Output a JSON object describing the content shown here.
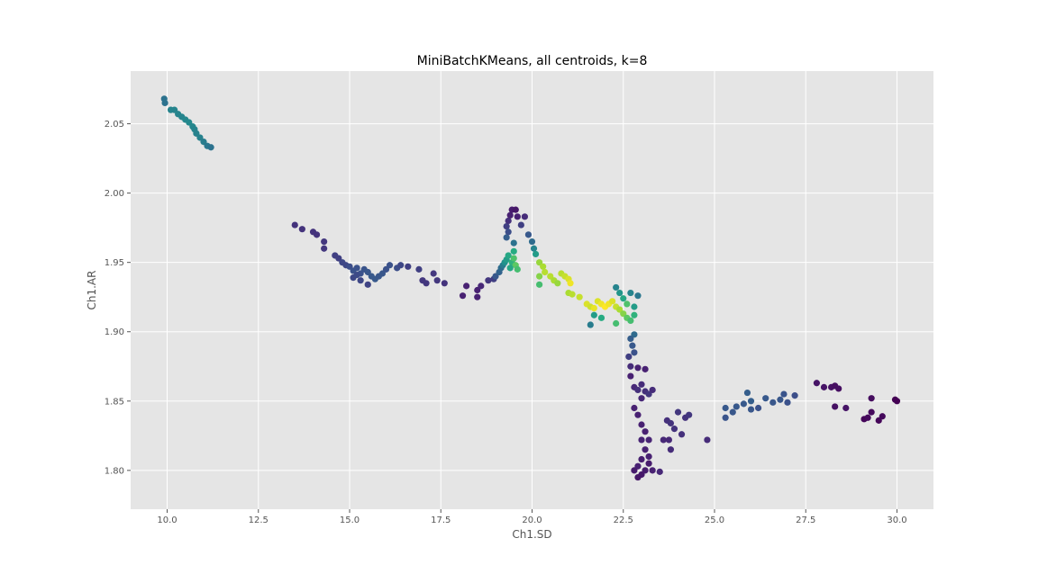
{
  "chart_data": {
    "type": "scatter",
    "title": "MiniBatchKMeans, all centroids, k=8",
    "xlabel": "Ch1.SD",
    "ylabel": "Ch1.AR",
    "xlim": [
      9,
      31
    ],
    "ylim": [
      1.772,
      2.088
    ],
    "xticks": [
      "10.0",
      "12.5",
      "15.0",
      "17.5",
      "20.0",
      "22.5",
      "25.0",
      "27.5",
      "30.0"
    ],
    "yticks": [
      "1.80",
      "1.85",
      "1.90",
      "1.95",
      "2.00",
      "2.05"
    ],
    "grid": true,
    "background": "#e5e5e5",
    "colormap": "viridis",
    "points": [
      [
        9.92,
        2.068,
        0.38
      ],
      [
        9.94,
        2.065,
        0.38
      ],
      [
        10.1,
        2.06,
        0.45
      ],
      [
        10.2,
        2.06,
        0.45
      ],
      [
        10.3,
        2.057,
        0.45
      ],
      [
        10.4,
        2.055,
        0.45
      ],
      [
        10.5,
        2.053,
        0.46
      ],
      [
        10.6,
        2.051,
        0.47
      ],
      [
        10.7,
        2.048,
        0.46
      ],
      [
        10.75,
        2.046,
        0.45
      ],
      [
        10.8,
        2.043,
        0.44
      ],
      [
        10.9,
        2.04,
        0.44
      ],
      [
        11.0,
        2.037,
        0.42
      ],
      [
        11.1,
        2.034,
        0.4
      ],
      [
        11.2,
        2.033,
        0.38
      ],
      [
        13.5,
        1.977,
        0.17
      ],
      [
        13.7,
        1.974,
        0.17
      ],
      [
        14.0,
        1.972,
        0.17
      ],
      [
        14.1,
        1.97,
        0.17
      ],
      [
        14.3,
        1.965,
        0.18
      ],
      [
        14.3,
        1.96,
        0.18
      ],
      [
        14.6,
        1.955,
        0.2
      ],
      [
        14.7,
        1.953,
        0.2
      ],
      [
        14.8,
        1.95,
        0.22
      ],
      [
        14.9,
        1.948,
        0.22
      ],
      [
        15.0,
        1.947,
        0.24
      ],
      [
        15.1,
        1.944,
        0.25
      ],
      [
        15.2,
        1.946,
        0.25
      ],
      [
        15.3,
        1.942,
        0.25
      ],
      [
        15.4,
        1.945,
        0.26
      ],
      [
        15.5,
        1.943,
        0.27
      ],
      [
        15.6,
        1.94,
        0.28
      ],
      [
        15.7,
        1.938,
        0.28
      ],
      [
        15.8,
        1.94,
        0.27
      ],
      [
        15.9,
        1.942,
        0.27
      ],
      [
        16.0,
        1.945,
        0.25
      ],
      [
        16.1,
        1.948,
        0.25
      ],
      [
        16.3,
        1.946,
        0.24
      ],
      [
        16.4,
        1.948,
        0.22
      ],
      [
        16.6,
        1.947,
        0.2
      ],
      [
        16.9,
        1.945,
        0.2
      ],
      [
        15.1,
        1.939,
        0.22
      ],
      [
        15.3,
        1.937,
        0.22
      ],
      [
        15.5,
        1.934,
        0.21
      ],
      [
        15.2,
        1.941,
        0.23
      ],
      [
        17.0,
        1.937,
        0.18
      ],
      [
        17.1,
        1.935,
        0.18
      ],
      [
        17.3,
        1.942,
        0.18
      ],
      [
        17.4,
        1.937,
        0.18
      ],
      [
        17.6,
        1.935,
        0.17
      ],
      [
        18.1,
        1.926,
        0.12
      ],
      [
        18.2,
        1.933,
        0.12
      ],
      [
        18.5,
        1.93,
        0.12
      ],
      [
        18.5,
        1.925,
        0.12
      ],
      [
        18.6,
        1.933,
        0.14
      ],
      [
        18.8,
        1.937,
        0.18
      ],
      [
        18.95,
        1.938,
        0.2
      ],
      [
        19.0,
        1.94,
        0.28
      ],
      [
        19.1,
        1.943,
        0.32
      ],
      [
        19.15,
        1.946,
        0.35
      ],
      [
        19.2,
        1.948,
        0.42
      ],
      [
        19.25,
        1.95,
        0.5
      ],
      [
        19.3,
        1.952,
        0.55
      ],
      [
        19.35,
        1.955,
        0.6
      ],
      [
        19.45,
        1.95,
        0.65
      ],
      [
        19.5,
        1.953,
        0.72
      ],
      [
        19.55,
        1.948,
        0.75
      ],
      [
        19.6,
        1.945,
        0.7
      ],
      [
        19.4,
        1.946,
        0.6
      ],
      [
        19.5,
        1.958,
        0.62
      ],
      [
        19.3,
        1.968,
        0.3
      ],
      [
        19.3,
        1.976,
        0.2
      ],
      [
        19.35,
        1.98,
        0.16
      ],
      [
        19.4,
        1.984,
        0.12
      ],
      [
        19.45,
        1.988,
        0.1
      ],
      [
        19.55,
        1.988,
        0.08
      ],
      [
        19.6,
        1.983,
        0.12
      ],
      [
        19.8,
        1.983,
        0.15
      ],
      [
        19.7,
        1.977,
        0.2
      ],
      [
        19.9,
        1.97,
        0.28
      ],
      [
        20.0,
        1.965,
        0.35
      ],
      [
        20.05,
        1.96,
        0.45
      ],
      [
        20.1,
        1.956,
        0.55
      ],
      [
        19.35,
        1.972,
        0.24
      ],
      [
        19.5,
        1.964,
        0.38
      ],
      [
        20.2,
        1.95,
        0.85
      ],
      [
        20.3,
        1.947,
        0.88
      ],
      [
        20.35,
        1.943,
        0.9
      ],
      [
        20.2,
        1.94,
        0.82
      ],
      [
        20.5,
        1.94,
        0.9
      ],
      [
        20.6,
        1.937,
        0.88
      ],
      [
        20.7,
        1.935,
        0.85
      ],
      [
        20.8,
        1.942,
        0.9
      ],
      [
        20.9,
        1.94,
        0.92
      ],
      [
        21.0,
        1.938,
        0.95
      ],
      [
        21.05,
        1.935,
        0.98
      ],
      [
        20.2,
        1.934,
        0.7
      ],
      [
        21.0,
        1.928,
        0.88
      ],
      [
        21.1,
        1.927,
        0.9
      ],
      [
        21.3,
        1.925,
        0.92
      ],
      [
        21.5,
        1.92,
        0.95
      ],
      [
        21.6,
        1.918,
        0.93
      ],
      [
        21.7,
        1.917,
        0.97
      ],
      [
        21.8,
        1.922,
        0.95
      ],
      [
        21.9,
        1.92,
        0.98
      ],
      [
        22.0,
        1.918,
        1.0
      ],
      [
        22.1,
        1.92,
        0.98
      ],
      [
        22.2,
        1.922,
        0.95
      ],
      [
        22.3,
        1.918,
        0.92
      ],
      [
        22.4,
        1.916,
        0.88
      ],
      [
        22.5,
        1.913,
        0.82
      ],
      [
        22.6,
        1.91,
        0.75
      ],
      [
        22.7,
        1.908,
        0.7
      ],
      [
        22.8,
        1.912,
        0.65
      ],
      [
        22.6,
        1.92,
        0.72
      ],
      [
        22.5,
        1.924,
        0.6
      ],
      [
        22.4,
        1.928,
        0.52
      ],
      [
        22.3,
        1.932,
        0.45
      ],
      [
        22.7,
        1.928,
        0.45
      ],
      [
        22.9,
        1.926,
        0.4
      ],
      [
        22.8,
        1.918,
        0.55
      ],
      [
        21.7,
        1.912,
        0.55
      ],
      [
        21.6,
        1.905,
        0.42
      ],
      [
        21.9,
        1.91,
        0.62
      ],
      [
        22.3,
        1.906,
        0.7
      ],
      [
        22.8,
        1.898,
        0.35
      ],
      [
        22.7,
        1.895,
        0.3
      ],
      [
        22.75,
        1.89,
        0.28
      ],
      [
        22.8,
        1.885,
        0.25
      ],
      [
        22.65,
        1.882,
        0.2
      ],
      [
        22.7,
        1.875,
        0.15
      ],
      [
        22.9,
        1.874,
        0.12
      ],
      [
        23.1,
        1.873,
        0.12
      ],
      [
        22.7,
        1.868,
        0.12
      ],
      [
        22.8,
        1.86,
        0.14
      ],
      [
        22.9,
        1.858,
        0.16
      ],
      [
        23.0,
        1.862,
        0.15
      ],
      [
        23.1,
        1.857,
        0.16
      ],
      [
        23.2,
        1.855,
        0.18
      ],
      [
        23.3,
        1.858,
        0.15
      ],
      [
        23.0,
        1.852,
        0.14
      ],
      [
        22.8,
        1.845,
        0.12
      ],
      [
        22.9,
        1.84,
        0.12
      ],
      [
        23.0,
        1.833,
        0.12
      ],
      [
        23.1,
        1.828,
        0.12
      ],
      [
        23.0,
        1.822,
        0.13
      ],
      [
        23.2,
        1.822,
        0.13
      ],
      [
        23.1,
        1.815,
        0.12
      ],
      [
        23.2,
        1.81,
        0.12
      ],
      [
        23.0,
        1.808,
        0.11
      ],
      [
        22.9,
        1.803,
        0.12
      ],
      [
        22.8,
        1.8,
        0.1
      ],
      [
        23.0,
        1.797,
        0.09
      ],
      [
        23.1,
        1.8,
        0.1
      ],
      [
        22.9,
        1.795,
        0.08
      ],
      [
        23.2,
        1.805,
        0.1
      ],
      [
        23.3,
        1.8,
        0.12
      ],
      [
        23.5,
        1.799,
        0.14
      ],
      [
        23.6,
        1.822,
        0.14
      ],
      [
        23.8,
        1.815,
        0.15
      ],
      [
        23.7,
        1.836,
        0.16
      ],
      [
        23.9,
        1.83,
        0.17
      ],
      [
        24.0,
        1.842,
        0.18
      ],
      [
        24.1,
        1.826,
        0.16
      ],
      [
        24.2,
        1.838,
        0.17
      ],
      [
        24.3,
        1.84,
        0.18
      ],
      [
        23.75,
        1.822,
        0.14
      ],
      [
        23.8,
        1.834,
        0.17
      ],
      [
        24.8,
        1.822,
        0.15
      ],
      [
        25.3,
        1.845,
        0.28
      ],
      [
        25.3,
        1.838,
        0.26
      ],
      [
        25.5,
        1.842,
        0.27
      ],
      [
        25.6,
        1.846,
        0.28
      ],
      [
        25.8,
        1.848,
        0.28
      ],
      [
        25.9,
        1.856,
        0.3
      ],
      [
        26.0,
        1.85,
        0.3
      ],
      [
        26.0,
        1.844,
        0.27
      ],
      [
        26.2,
        1.845,
        0.25
      ],
      [
        26.4,
        1.852,
        0.28
      ],
      [
        26.6,
        1.849,
        0.27
      ],
      [
        26.8,
        1.851,
        0.27
      ],
      [
        26.9,
        1.855,
        0.26
      ],
      [
        27.0,
        1.849,
        0.25
      ],
      [
        27.2,
        1.854,
        0.24
      ],
      [
        27.8,
        1.863,
        0.07
      ],
      [
        28.0,
        1.86,
        0.07
      ],
      [
        28.2,
        1.86,
        0.06
      ],
      [
        28.3,
        1.861,
        0.05
      ],
      [
        28.4,
        1.859,
        0.05
      ],
      [
        28.3,
        1.846,
        0.06
      ],
      [
        28.6,
        1.845,
        0.07
      ],
      [
        29.1,
        1.837,
        0.02
      ],
      [
        29.2,
        1.838,
        0.03
      ],
      [
        29.3,
        1.842,
        0.03
      ],
      [
        29.3,
        1.852,
        0.04
      ],
      [
        29.5,
        1.836,
        0.02
      ],
      [
        29.6,
        1.839,
        0.03
      ],
      [
        30.0,
        1.85,
        0.0
      ],
      [
        29.95,
        1.851,
        0.0
      ]
    ]
  }
}
